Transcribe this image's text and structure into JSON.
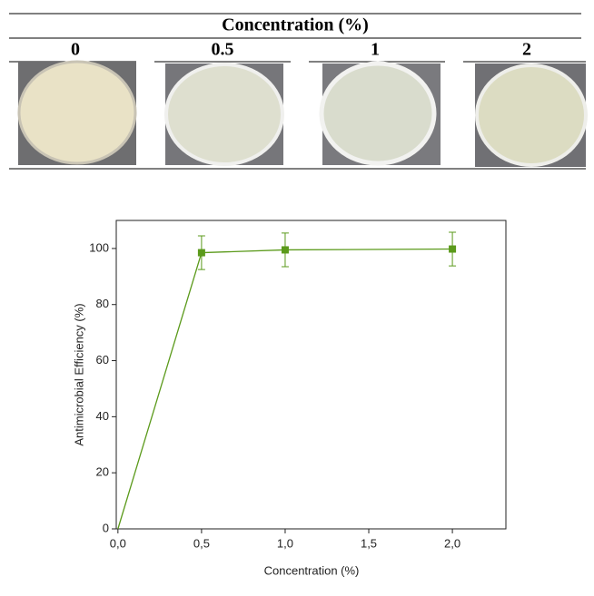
{
  "table": {
    "title": "Concentration (%)",
    "columns": [
      "0",
      "0.5",
      "1",
      "2"
    ]
  },
  "chart_data": {
    "type": "line",
    "x": [
      0,
      0.5,
      1,
      2
    ],
    "values": [
      0,
      98.5,
      99.5,
      99.8
    ],
    "errors": [
      null,
      6,
      6,
      6
    ],
    "color": "#5b9a1b",
    "xlabel": "Concentration (%)",
    "ylabel": "Antimicrobial Efficiency (%)",
    "xlim": [
      -0.01,
      2.32
    ],
    "ylim": [
      0,
      110
    ],
    "xticks": [
      {
        "value": 0,
        "label": "0,0"
      },
      {
        "value": 0.5,
        "label": "0,5"
      },
      {
        "value": 1,
        "label": "1,0"
      },
      {
        "value": 1.5,
        "label": "1,5"
      },
      {
        "value": 2,
        "label": "2,0"
      }
    ],
    "yticks": [
      0,
      20,
      40,
      60,
      80,
      100
    ]
  }
}
